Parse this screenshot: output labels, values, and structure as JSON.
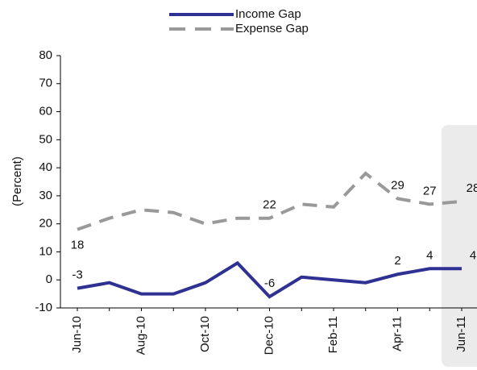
{
  "chart_data": {
    "type": "line",
    "y_label": "(Percent)",
    "categories": [
      "Jun-10",
      null,
      "Aug-10",
      null,
      "Oct-10",
      null,
      "Dec-10",
      null,
      "Feb-11",
      null,
      "Apr-11",
      null,
      "Jun-11"
    ],
    "series": [
      {
        "name": "Income Gap",
        "color": "#2e3192",
        "dash": "solid",
        "values": [
          -3,
          -1,
          -5,
          -5,
          -1,
          6,
          -6,
          1,
          0,
          -1,
          2,
          4,
          4
        ],
        "value_labels": [
          "-3",
          null,
          null,
          null,
          null,
          null,
          "-6",
          null,
          null,
          null,
          "2",
          "4",
          "4"
        ]
      },
      {
        "name": "Expense Gap",
        "color": "#999999",
        "dash": "dashed",
        "values": [
          18,
          22,
          25,
          24,
          20,
          22,
          22,
          27,
          26,
          38,
          29,
          27,
          28
        ],
        "value_labels": [
          "18",
          null,
          null,
          null,
          null,
          null,
          "22",
          null,
          null,
          null,
          "29",
          "27",
          "28"
        ]
      }
    ],
    "ylim": [
      -10,
      80
    ],
    "yticks": [
      -10,
      0,
      10,
      20,
      30,
      40,
      50,
      60,
      70,
      80
    ]
  }
}
